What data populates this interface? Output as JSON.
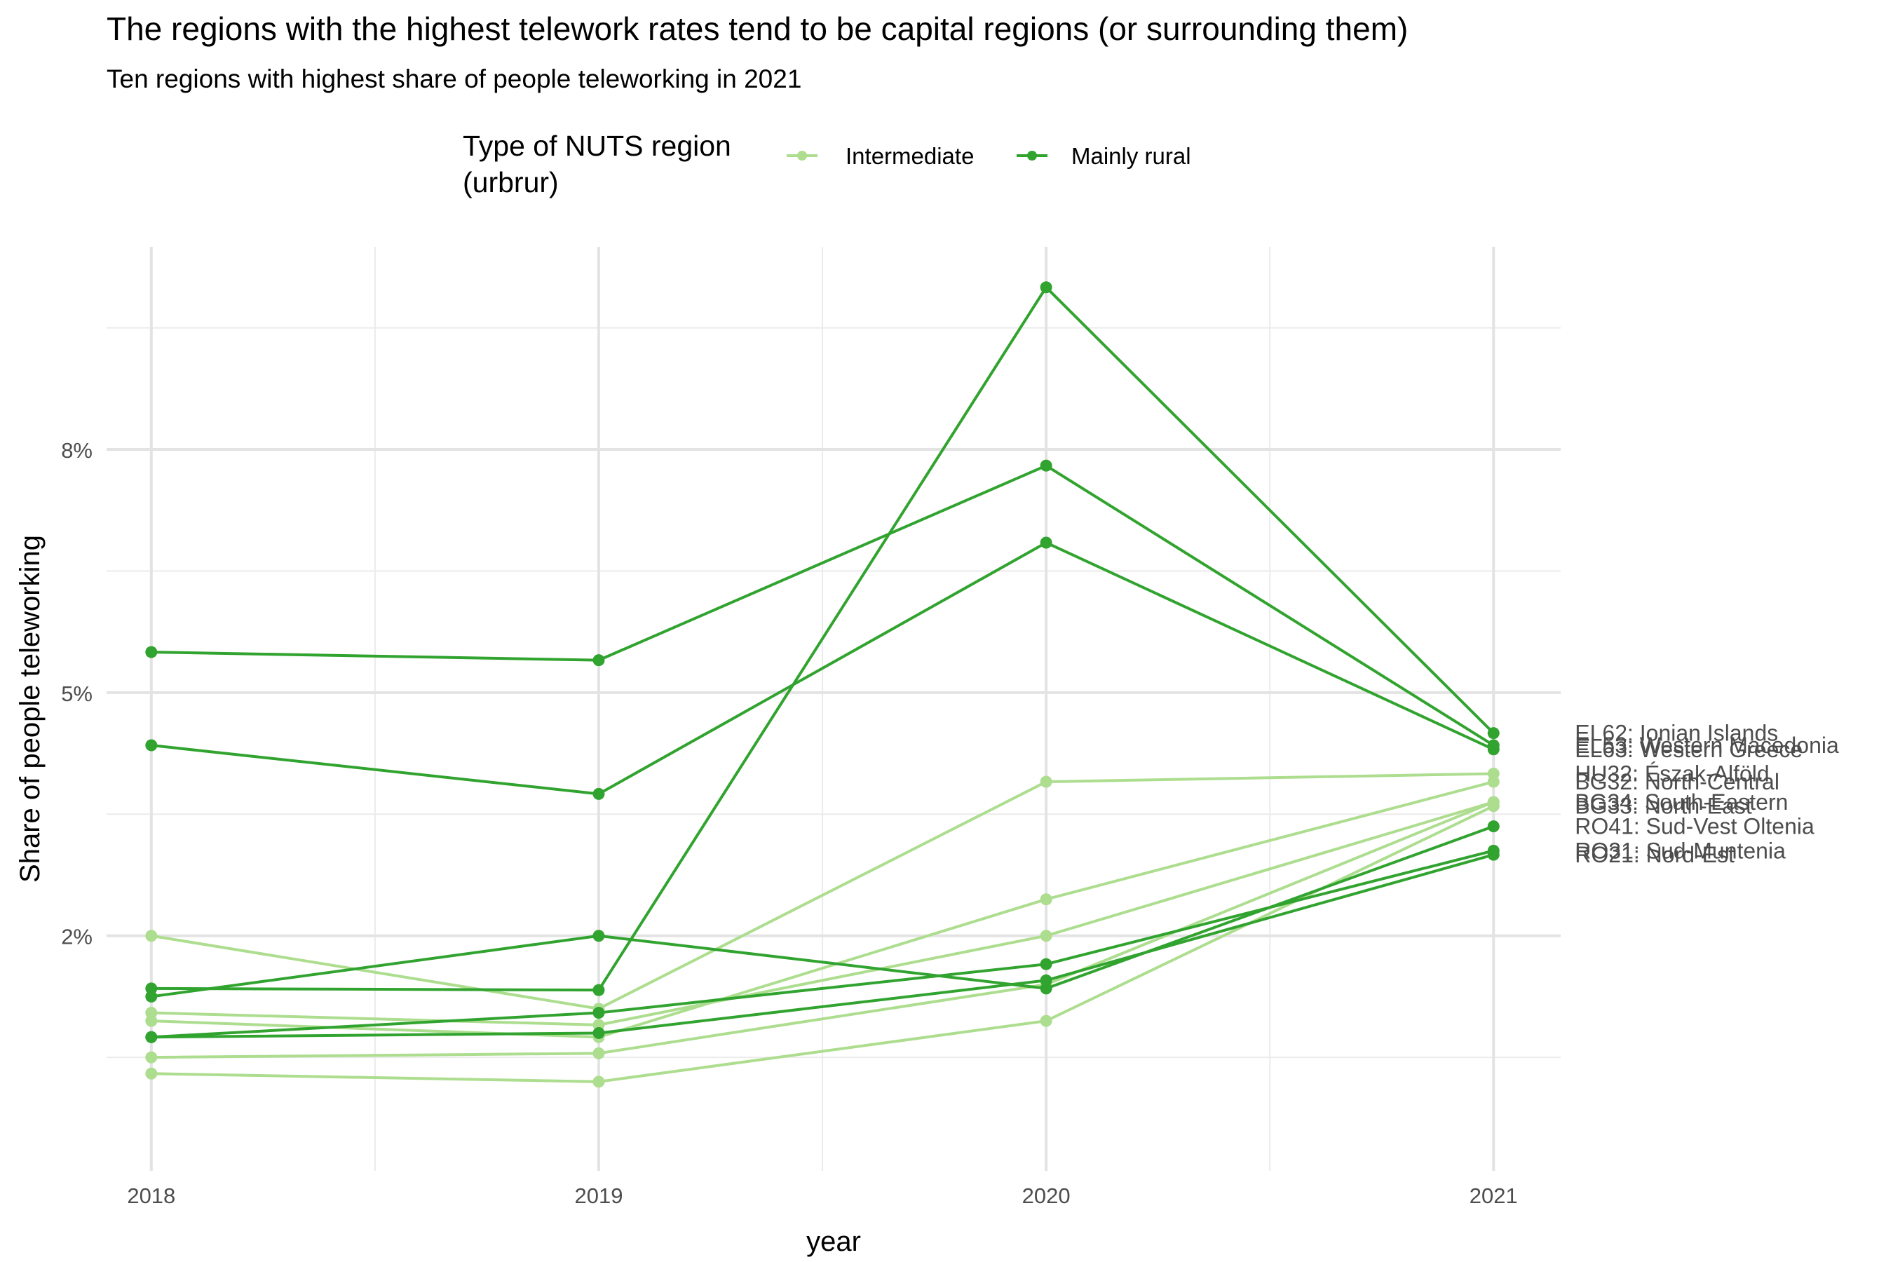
{
  "title": "The regions with the highest telework rates tend to be capital regions (or surrounding them)",
  "subtitle": "Ten regions with highest share of people teleworking in 2021",
  "legend": {
    "title_line1": "Type of NUTS region",
    "title_line2": "(urbrur)",
    "items": [
      {
        "label": "Intermediate",
        "color": "#addd8e"
      },
      {
        "label": "Mainly rural",
        "color": "#31a32f"
      }
    ]
  },
  "chart_data": {
    "type": "line",
    "title": "The regions with the highest telework rates tend to be capital regions (or surrounding them)",
    "subtitle": "Ten regions with highest share of people teleworking in 2021",
    "xlabel": "year",
    "ylabel": "Share of people teleworking",
    "x": [
      2018,
      2019,
      2020,
      2021
    ],
    "x_tick_labels": [
      "2018",
      "2019",
      "2020",
      "2021"
    ],
    "y_ticks": [
      2,
      5,
      8
    ],
    "y_tick_labels": [
      "2%",
      "5%",
      "8%"
    ],
    "xlim": [
      2017.9,
      2021.15
    ],
    "ylim": [
      -0.9,
      10.5
    ],
    "grid": true,
    "legend_position": "top",
    "series": [
      {
        "name": "EL62: Ionian Islands",
        "type": "Mainly rural",
        "values": [
          1.35,
          1.33,
          10.0,
          4.5
        ]
      },
      {
        "name": "EL53: Western Macedonia",
        "type": "Mainly rural",
        "values": [
          5.5,
          5.4,
          7.8,
          4.35
        ]
      },
      {
        "name": "EL63: Western Greece",
        "type": "Mainly rural",
        "values": [
          4.35,
          3.75,
          6.85,
          4.3
        ]
      },
      {
        "name": "HU32: Észak-Alföld",
        "type": "Intermediate",
        "values": [
          2.0,
          1.1,
          3.9,
          4.0
        ]
      },
      {
        "name": "BG32: North-Central",
        "type": "Intermediate",
        "values": [
          0.95,
          0.75,
          2.45,
          3.9
        ]
      },
      {
        "name": "BG34: South-Eastern",
        "type": "Intermediate",
        "values": [
          1.05,
          0.9,
          2.0,
          3.65
        ]
      },
      {
        "name": "BG33: North-East",
        "type": "Intermediate",
        "values": [
          0.3,
          0.2,
          0.95,
          3.6
        ]
      },
      {
        "name": "RO41: Sud-Vest Oltenia",
        "type": "Mainly rural",
        "values": [
          1.25,
          2.0,
          1.35,
          3.35
        ]
      },
      {
        "name": "RO31: Sud-Muntenia",
        "type": "Mainly rural",
        "values": [
          0.75,
          1.05,
          1.65,
          3.05
        ]
      },
      {
        "name": "RO21: Nord-Est",
        "type": "Mainly rural",
        "values": [
          0.75,
          0.8,
          1.45,
          3.0
        ]
      },
      {
        "name": "",
        "type": "Intermediate",
        "values": [
          0.5,
          0.55,
          1.4,
          3.65
        ]
      }
    ]
  }
}
